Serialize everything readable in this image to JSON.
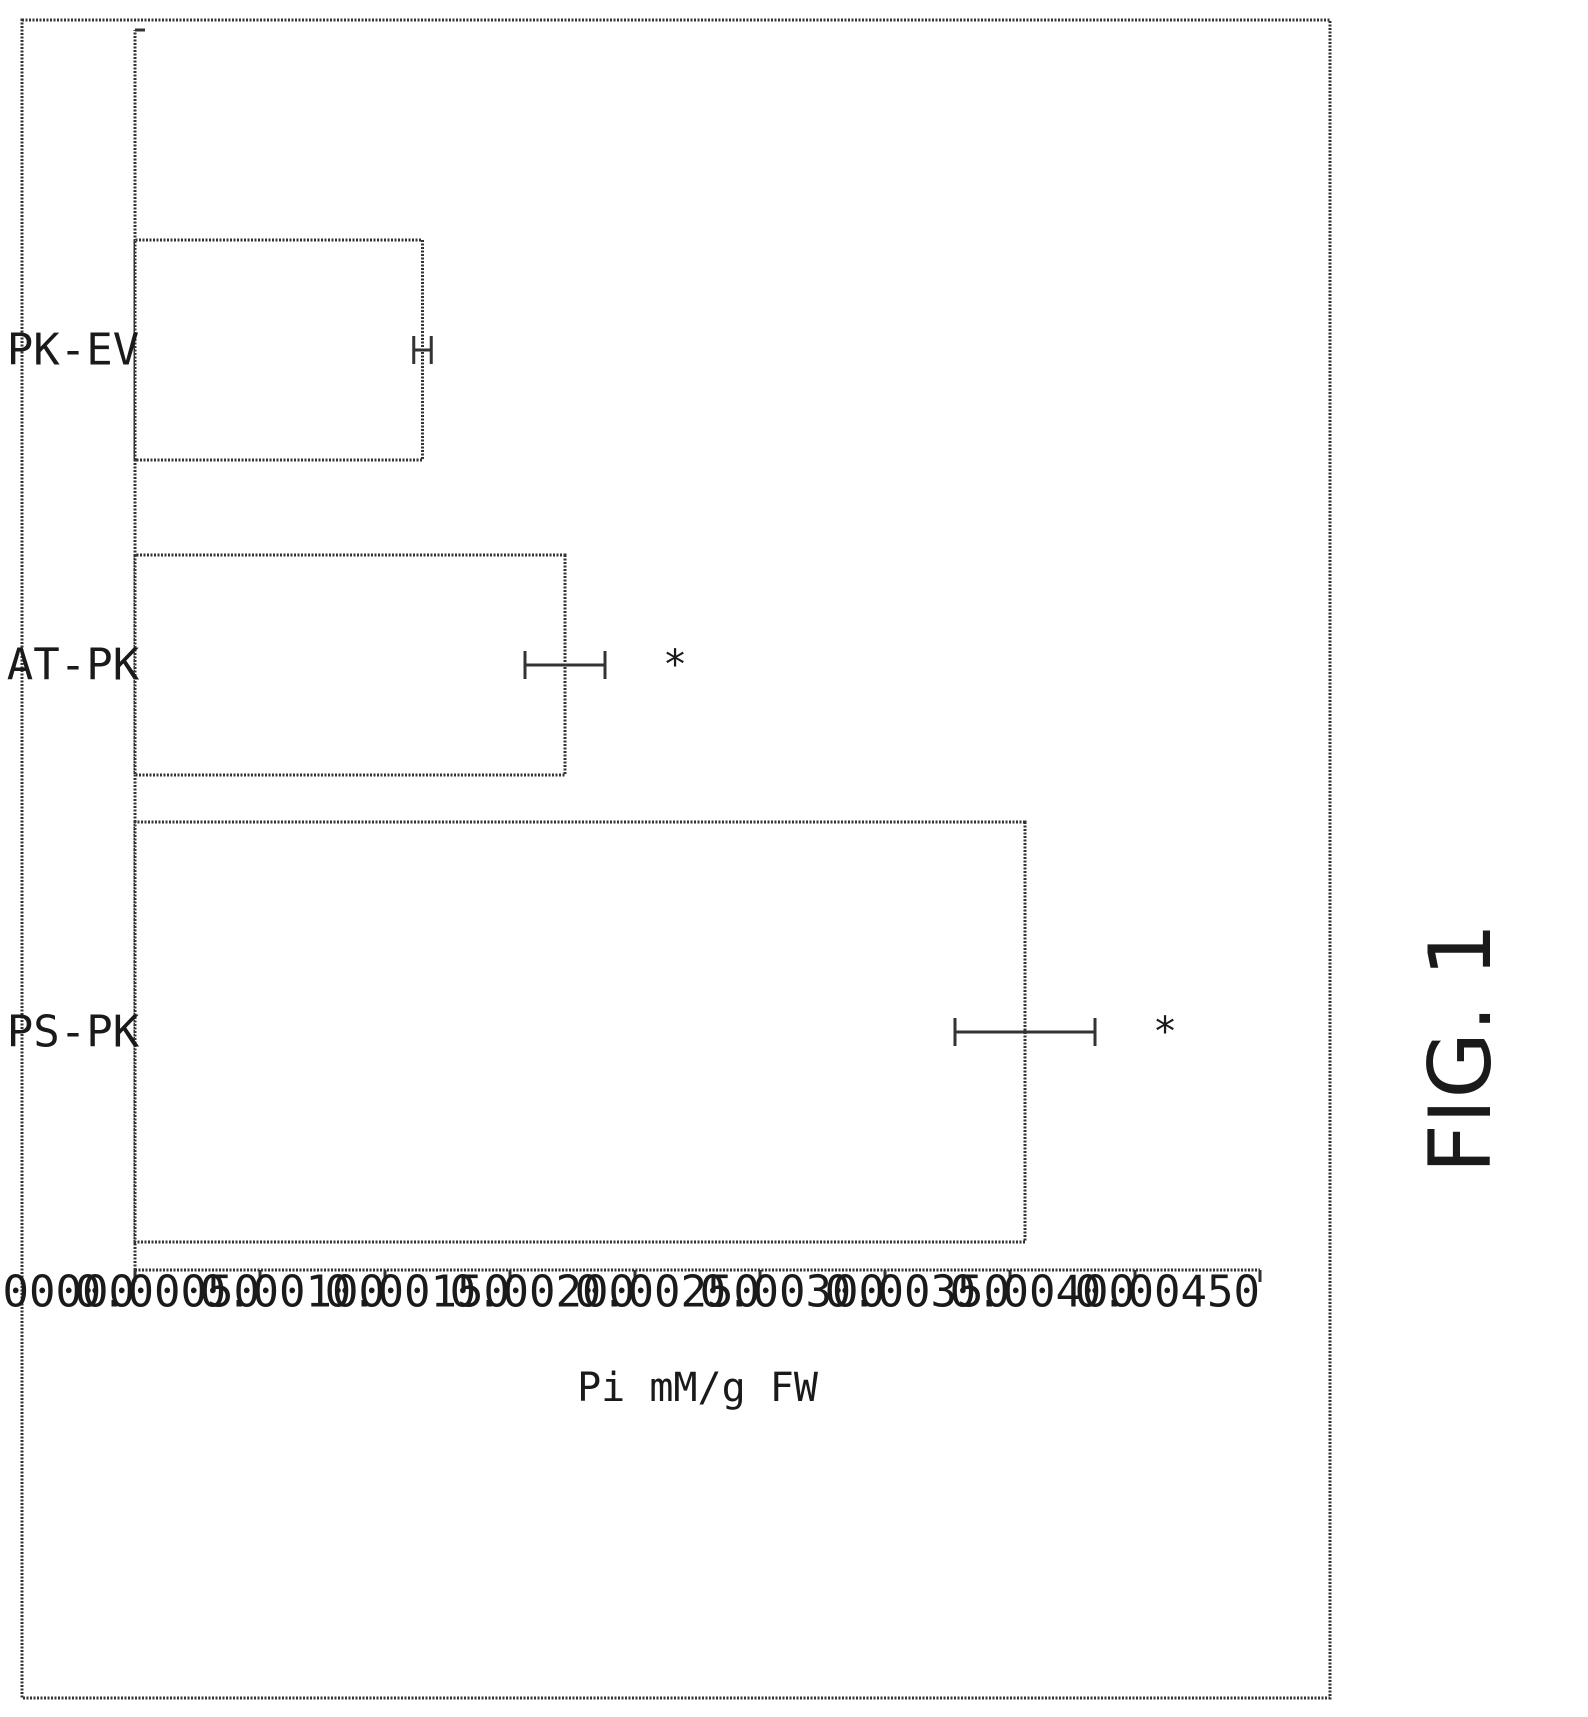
{
  "figure": {
    "label": "FIG. 1"
  },
  "chart_data": {
    "type": "bar",
    "orientation": "vertical (rotated 90° clockwise on page)",
    "categories": [
      "PS-PK",
      "AT-PK",
      "PK-EV"
    ],
    "values": [
      0.00356,
      0.00172,
      0.00115
    ],
    "error": [
      0.00028,
      0.00016,
      3.5e-05
    ],
    "significance": [
      "*",
      "*",
      ""
    ],
    "ylabel": "Pi mM/g FW",
    "xlabel": "",
    "ylim": [
      0,
      0.0045
    ],
    "yticks": [
      "0.00000",
      "0.00050",
      "0.00100",
      "0.00150",
      "0.00200",
      "0.00250",
      "0.00300",
      "0.00350",
      "0.00400",
      "0.00450"
    ],
    "grid": false,
    "legend": "none"
  }
}
